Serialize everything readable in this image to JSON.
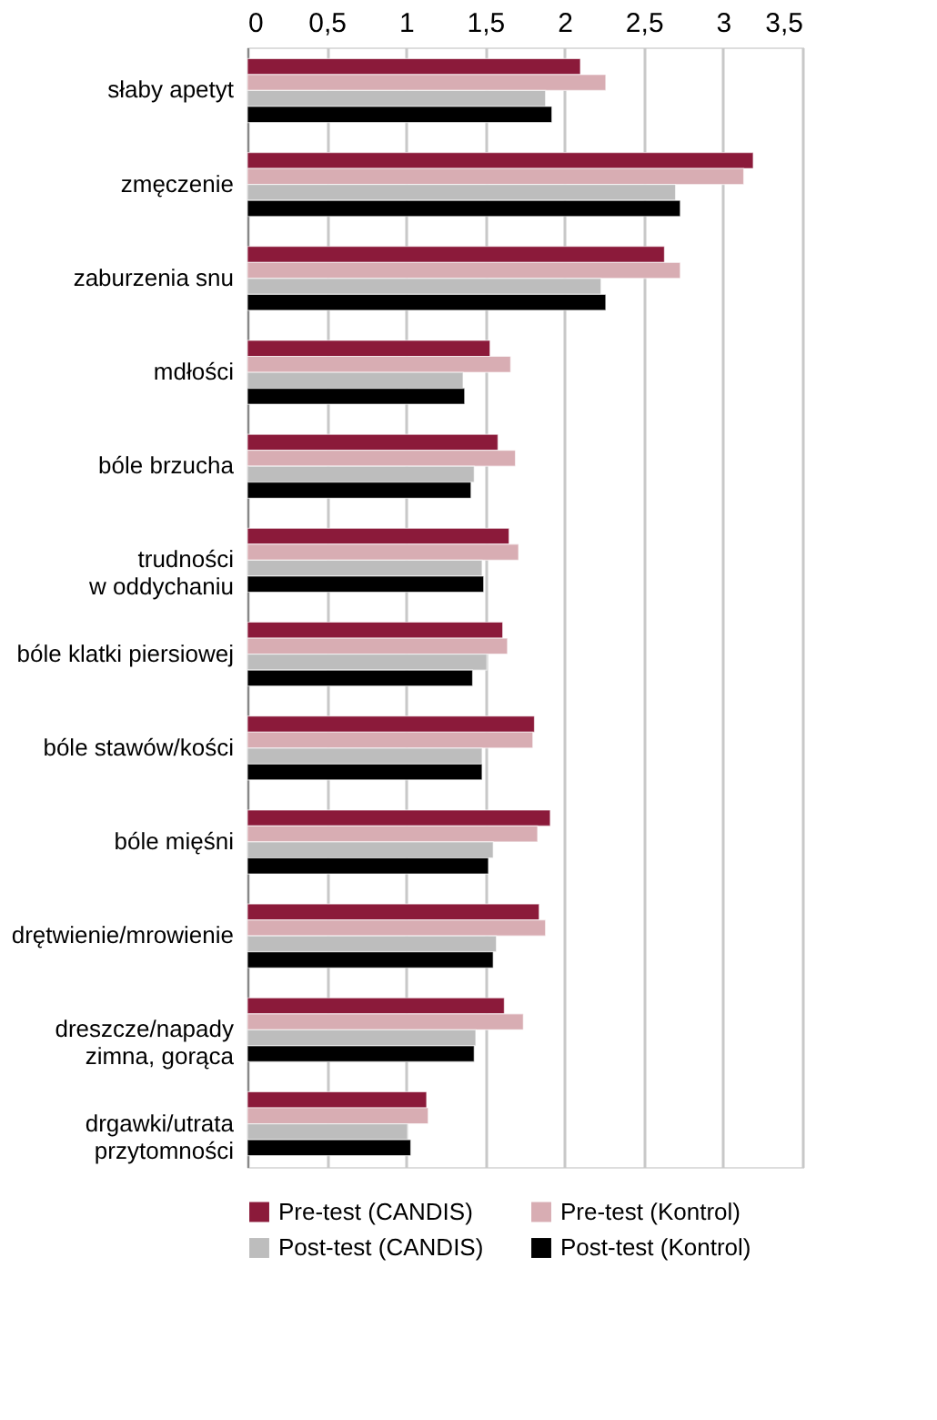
{
  "chart_data": {
    "type": "bar",
    "orientation": "horizontal",
    "categories": [
      "słaby apetyt",
      "zmęczenie",
      "zaburzenia snu",
      "mdłości",
      "bóle brzucha",
      "trudności\nw oddychaniu",
      "bóle klatki piersiowej",
      "bóle stawów/kości",
      "bóle mięśni",
      "drętwienie/mrowienie",
      "dreszcze/napady\nzimna, gorąca",
      "drgawki/utrata\nprzytomności"
    ],
    "series": [
      {
        "name": "Pre-test (CANDIS)",
        "color": "#8b1a3a",
        "values": [
          2.1,
          3.19,
          2.63,
          1.53,
          1.58,
          1.65,
          1.61,
          1.81,
          1.91,
          1.84,
          1.62,
          1.13
        ]
      },
      {
        "name": "Pre-test (Kontrol)",
        "color": "#d8adb3",
        "values": [
          2.26,
          3.13,
          2.73,
          1.66,
          1.69,
          1.71,
          1.64,
          1.8,
          1.83,
          1.88,
          1.74,
          1.14
        ]
      },
      {
        "name": "Post-test (CANDIS)",
        "color": "#bdbdbd",
        "values": [
          1.88,
          2.7,
          2.23,
          1.36,
          1.43,
          1.48,
          1.51,
          1.48,
          1.55,
          1.57,
          1.44,
          1.01
        ]
      },
      {
        "name": "Post-test (Kontrol)",
        "color": "#000000",
        "values": [
          1.92,
          2.73,
          2.26,
          1.37,
          1.41,
          1.49,
          1.42,
          1.48,
          1.52,
          1.55,
          1.43,
          1.03
        ]
      }
    ],
    "xlim": [
      0,
      3.5
    ],
    "xticks": [
      {
        "value": 0,
        "label": "0"
      },
      {
        "value": 0.5,
        "label": "0,5"
      },
      {
        "value": 1,
        "label": "1"
      },
      {
        "value": 1.5,
        "label": "1,5"
      },
      {
        "value": 2,
        "label": "2"
      },
      {
        "value": 2.5,
        "label": "2,5"
      },
      {
        "value": 3,
        "label": "3"
      },
      {
        "value": 3.5,
        "label": "3,5"
      }
    ],
    "grid": "x",
    "legend": "bottom"
  }
}
